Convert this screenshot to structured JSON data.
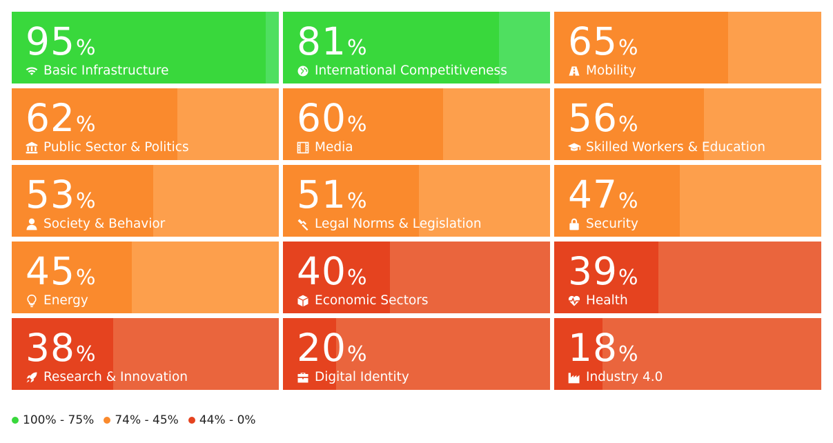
{
  "chart_data": {
    "type": "table",
    "title": "",
    "unit": "%",
    "colors": {
      "green": {
        "light": "#4fdf60",
        "dark": "#39d83c"
      },
      "orange": {
        "light": "#fd9f4c",
        "dark": "#fa8a2d"
      },
      "red": {
        "light": "#ea653d",
        "dark": "#e5431f"
      }
    },
    "tiles": [
      {
        "value": 95,
        "label": "Basic Infrastructure",
        "icon": "wifi-icon",
        "category": "green"
      },
      {
        "value": 81,
        "label": "International Competitiveness",
        "icon": "globe-icon",
        "category": "green"
      },
      {
        "value": 65,
        "label": "Mobility",
        "icon": "road-icon",
        "category": "orange"
      },
      {
        "value": 62,
        "label": "Public Sector & Politics",
        "icon": "bank-icon",
        "category": "orange"
      },
      {
        "value": 60,
        "label": "Media",
        "icon": "film-icon",
        "category": "orange"
      },
      {
        "value": 56,
        "label": "Skilled Workers & Education",
        "icon": "graduation-cap-icon",
        "category": "orange"
      },
      {
        "value": 53,
        "label": "Society & Behavior",
        "icon": "user-icon",
        "category": "orange"
      },
      {
        "value": 51,
        "label": "Legal Norms & Legislation",
        "icon": "gavel-icon",
        "category": "orange"
      },
      {
        "value": 47,
        "label": "Security",
        "icon": "lock-icon",
        "category": "orange"
      },
      {
        "value": 45,
        "label": "Energy",
        "icon": "lightbulb-icon",
        "category": "orange"
      },
      {
        "value": 40,
        "label": "Economic Sectors",
        "icon": "cube-icon",
        "category": "red"
      },
      {
        "value": 39,
        "label": "Health",
        "icon": "heartbeat-icon",
        "category": "red"
      },
      {
        "value": 38,
        "label": "Research & Innovation",
        "icon": "rocket-icon",
        "category": "red"
      },
      {
        "value": 20,
        "label": "Digital Identity",
        "icon": "briefcase-icon",
        "category": "red"
      },
      {
        "value": 18,
        "label": "Industry 4.0",
        "icon": "industry-icon",
        "category": "red"
      }
    ],
    "legend": [
      {
        "label": "100% - 75%",
        "category": "green"
      },
      {
        "label": "74% - 45%",
        "category": "orange"
      },
      {
        "label": "44% - 0%",
        "category": "red"
      }
    ]
  }
}
